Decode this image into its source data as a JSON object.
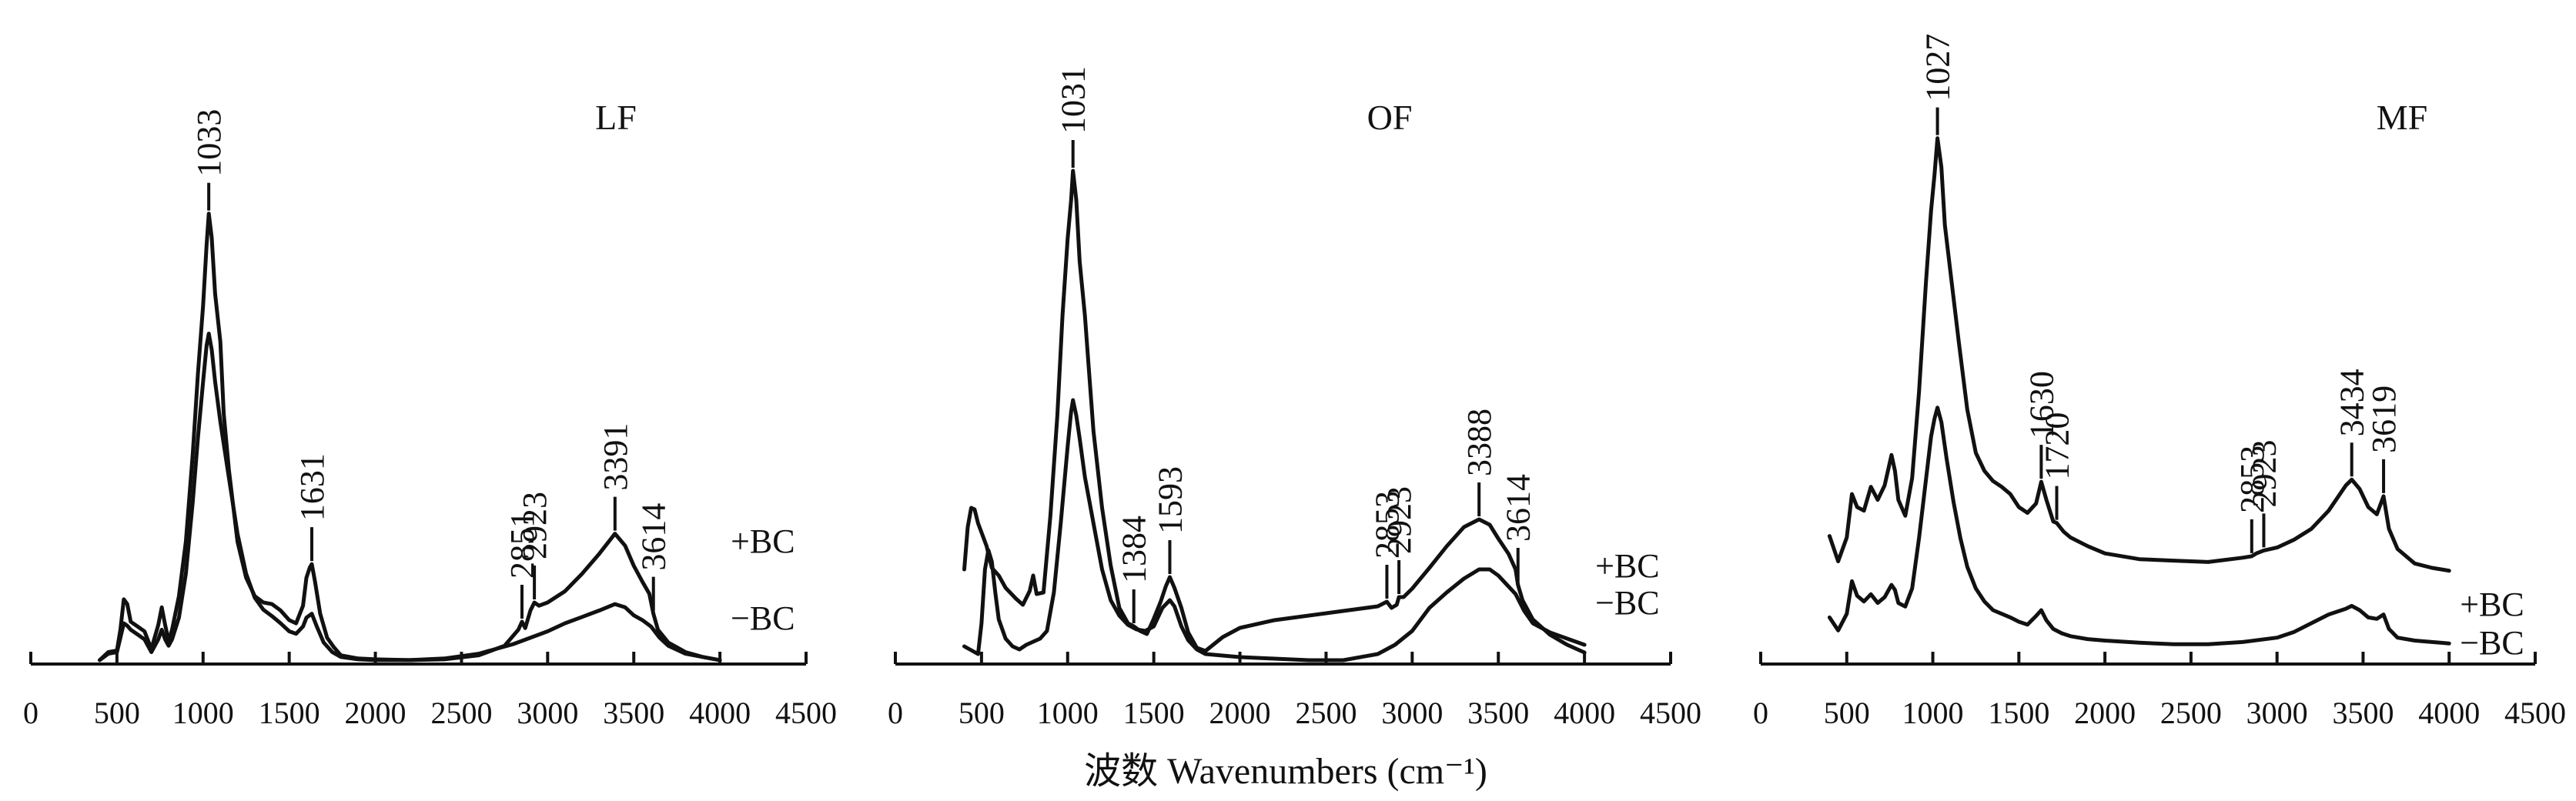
{
  "chart_data": {
    "type": "line",
    "xlabel": "波数 Wavenumbers (cm⁻¹)",
    "xticks": [
      0,
      500,
      1000,
      1500,
      2000,
      2500,
      3000,
      3500,
      4000,
      4500
    ],
    "xlim": [
      0,
      4500
    ],
    "grid": false,
    "panels": [
      {
        "title": "LF",
        "series": [
          {
            "name": "+BC",
            "x": [
              400,
              450,
              500,
              520,
              540,
              560,
              580,
              620,
              660,
              700,
              740,
              760,
              780,
              800,
              820,
              860,
              900,
              940,
              970,
              1000,
              1020,
              1033,
              1050,
              1070,
              1100,
              1120,
              1150,
              1200,
              1250,
              1300,
              1350,
              1400,
              1450,
              1500,
              1540,
              1580,
              1600,
              1620,
              1631,
              1650,
              1680,
              1720,
              1760,
              1800,
              1900,
              2000,
              2200,
              2400,
              2600,
              2750,
              2830,
              2851,
              2870,
              2900,
              2923,
              2950,
              3000,
              3100,
              3200,
              3300,
              3391,
              3450,
              3500,
              3550,
              3590,
              3614,
              3640,
              3700,
              3800,
              3900,
              4000
            ],
            "y": [
              2,
              12,
              14,
              40,
              78,
              72,
              50,
              44,
              38,
              16,
              46,
              68,
              46,
              26,
              40,
              82,
              150,
              260,
              360,
              445,
              520,
              560,
              530,
              460,
              400,
              310,
              240,
              150,
              105,
              82,
              74,
              72,
              64,
              52,
              48,
              70,
              105,
              118,
              122,
              100,
              60,
              30,
              18,
              8,
              4,
              3,
              2,
              3,
              8,
              20,
              40,
              50,
              42,
              64,
              74,
              70,
              74,
              88,
              110,
              135,
              160,
              145,
              120,
              100,
              85,
              60,
              40,
              24,
              12,
              6,
              2
            ]
          },
          {
            "name": "−BC",
            "x": [
              400,
              450,
              500,
              520,
              540,
              560,
              580,
              620,
              660,
              700,
              740,
              760,
              780,
              800,
              820,
              860,
              900,
              940,
              970,
              1000,
              1020,
              1033,
              1050,
              1070,
              1100,
              1150,
              1200,
              1250,
              1300,
              1350,
              1400,
              1450,
              1500,
              1540,
              1580,
              1600,
              1631,
              1660,
              1700,
              1750,
              1800,
              1900,
              2000,
              2200,
              2400,
              2600,
              2800,
              3000,
              3100,
              3200,
              3300,
              3391,
              3450,
              3500,
              3550,
              3600,
              3650,
              3700,
              3800,
              3900,
              4000
            ],
            "y": [
              2,
              10,
              12,
              30,
              48,
              45,
              40,
              34,
              28,
              12,
              28,
              40,
              28,
              20,
              28,
              55,
              110,
              200,
              280,
              350,
              395,
              410,
              390,
              350,
              300,
              230,
              160,
              110,
              80,
              65,
              57,
              48,
              38,
              35,
              44,
              55,
              60,
              44,
              24,
              12,
              6,
              3,
              2,
              2,
              4,
              10,
              22,
              38,
              48,
              56,
              64,
              72,
              68,
              58,
              52,
              44,
              30,
              20,
              10,
              6,
              2
            ]
          }
        ],
        "peaks": [
          "1033",
          "1631",
          "2851",
          "2923",
          "3391",
          "3614"
        ]
      },
      {
        "title": "OF",
        "series": [
          {
            "name": "+BC",
            "x": [
              400,
              420,
              440,
              460,
              480,
              500,
              530,
              560,
              600,
              640,
              700,
              740,
              780,
              800,
              820,
              860,
              900,
              940,
              970,
              1000,
              1020,
              1031,
              1050,
              1070,
              1100,
              1120,
              1150,
              1200,
              1250,
              1300,
              1350,
              1384,
              1420,
              1460,
              1500,
              1540,
              1570,
              1593,
              1620,
              1660,
              1700,
              1750,
              1800,
              1900,
              2000,
              2200,
              2400,
              2600,
              2800,
              2853,
              2880,
              2910,
              2923,
              2950,
              3000,
              3100,
              3200,
              3300,
              3388,
              3450,
              3500,
              3560,
              3600,
              3614,
              3640,
              3700,
              3800,
              3900,
              4000
            ],
            "y": [
              120,
              175,
              200,
              198,
              180,
              168,
              150,
              122,
              112,
              96,
              82,
              74,
              92,
              112,
              88,
              90,
              190,
              320,
              450,
              550,
              600,
              638,
              600,
              520,
              450,
              390,
              300,
              200,
              125,
              70,
              50,
              46,
              40,
              36,
              56,
              78,
              98,
              110,
              96,
              70,
              38,
              18,
              14,
              32,
              44,
              54,
              60,
              66,
              72,
              78,
              70,
              74,
              84,
              84,
              95,
              122,
              150,
              175,
              185,
              178,
              160,
              140,
              120,
              100,
              80,
              55,
              35,
              22,
              12
            ]
          },
          {
            "name": "−BC",
            "x": [
              400,
              440,
              480,
              500,
              520,
              540,
              560,
              580,
              600,
              640,
              680,
              720,
              760,
              800,
              840,
              880,
              920,
              960,
              1000,
              1020,
              1031,
              1050,
              1070,
              1100,
              1150,
              1200,
              1250,
              1300,
              1350,
              1400,
              1450,
              1500,
              1550,
              1593,
              1620,
              1660,
              1700,
              1750,
              1800,
              1900,
              2000,
              2200,
              2400,
              2600,
              2800,
              2900,
              3000,
              3100,
              3200,
              3300,
              3388,
              3450,
              3500,
              3550,
              3600,
              3650,
              3700,
              3800,
              3900,
              4000
            ],
            "y": [
              20,
              15,
              10,
              50,
              120,
              145,
              130,
              90,
              55,
              30,
              20,
              16,
              22,
              26,
              30,
              40,
              90,
              180,
              280,
              325,
              340,
              320,
              290,
              240,
              180,
              120,
              80,
              60,
              48,
              42,
              40,
              46,
              70,
              80,
              72,
              46,
              28,
              16,
              10,
              8,
              6,
              4,
              2,
              2,
              10,
              22,
              40,
              70,
              90,
              108,
              120,
              120,
              112,
              100,
              88,
              66,
              50,
              38,
              30,
              22
            ]
          }
        ],
        "peaks": [
          "1031",
          "1384",
          "1593",
          "2853",
          "2923",
          "3388",
          "3614"
        ]
      },
      {
        "title": "MF",
        "series": [
          {
            "name": "+BC",
            "x": [
              400,
              450,
              500,
              530,
              560,
              600,
              640,
              680,
              720,
              760,
              780,
              800,
              840,
              880,
              920,
              960,
              990,
              1010,
              1027,
              1050,
              1070,
              1100,
              1150,
              1200,
              1250,
              1300,
              1350,
              1400,
              1450,
              1500,
              1550,
              1600,
              1630,
              1660,
              1700,
              1720,
              1760,
              1800,
              1900,
              2000,
              2200,
              2400,
              2600,
              2800,
              2853,
              2880,
              2923,
              3000,
              3100,
              3200,
              3300,
              3400,
              3434,
              3480,
              3530,
              3580,
              3619,
              3650,
              3700,
              3800,
              3900,
              4000
            ],
            "y": [
              110,
              75,
              108,
              168,
              150,
              145,
              178,
              160,
              180,
              222,
              200,
              160,
              138,
              190,
              310,
              460,
              560,
              610,
              660,
              620,
              540,
              480,
              380,
              285,
              225,
              200,
              186,
              178,
              168,
              150,
              142,
              155,
              185,
              160,
              130,
              128,
              116,
              108,
              96,
              86,
              78,
              76,
              74,
              80,
              82,
              86,
              90,
              94,
              105,
              120,
              145,
              180,
              188,
              175,
              150,
              140,
              165,
              120,
              92,
              72,
              66,
              62
            ]
          },
          {
            "name": "−BC",
            "x": [
              400,
              450,
              500,
              530,
              560,
              600,
              640,
              680,
              720,
              760,
              780,
              800,
              840,
              880,
              920,
              960,
              990,
              1010,
              1027,
              1050,
              1080,
              1120,
              1160,
              1200,
              1250,
              1300,
              1350,
              1400,
              1450,
              1500,
              1550,
              1600,
              1630,
              1660,
              1700,
              1750,
              1800,
              1900,
              2000,
              2200,
              2400,
              2600,
              2800,
              3000,
              3100,
              3200,
              3300,
              3400,
              3434,
              3480,
              3530,
              3580,
              3619,
              3650,
              3700,
              3800,
              3900,
              4000
            ],
            "y": [
              40,
              22,
              45,
              90,
              70,
              62,
              72,
              60,
              68,
              85,
              78,
              60,
              55,
              80,
              150,
              230,
              290,
              315,
              330,
              310,
              260,
              200,
              150,
              110,
              80,
              62,
              50,
              45,
              40,
              34,
              30,
              42,
              50,
              36,
              24,
              18,
              14,
              10,
              8,
              5,
              3,
              3,
              6,
              12,
              20,
              32,
              44,
              52,
              56,
              50,
              40,
              38,
              44,
              24,
              12,
              8,
              6,
              4
            ]
          }
        ],
        "peaks": [
          "1027",
          "1630",
          "1720",
          "2853",
          "2923",
          "3434",
          "3619"
        ]
      }
    ]
  }
}
